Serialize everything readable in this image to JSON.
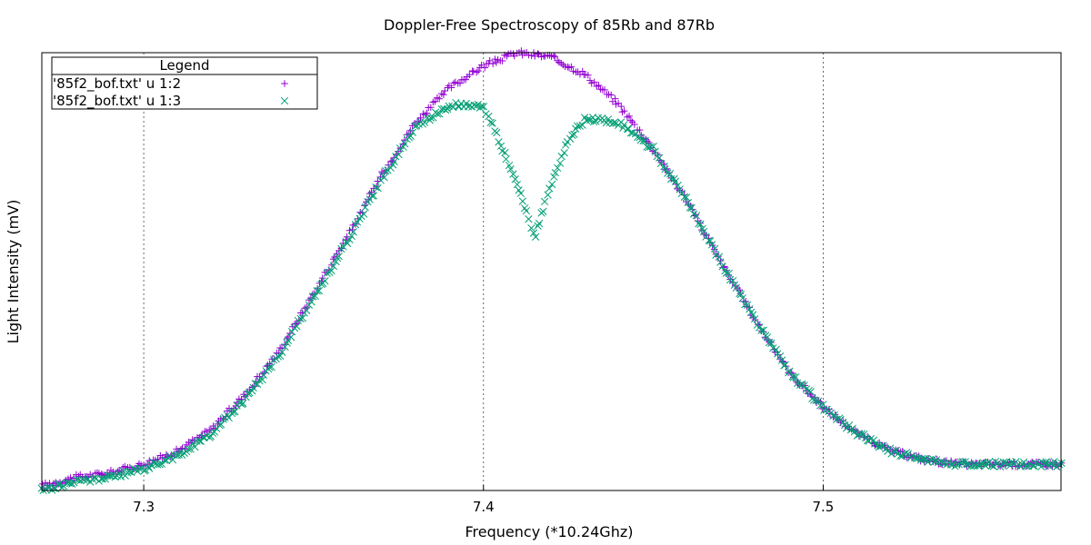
{
  "chart_data": {
    "type": "scatter",
    "title": "Doppler-Free Spectroscopy of 85Rb and 87Rb",
    "xlabel": "Frequency (*10.24Ghz)",
    "ylabel": "Light Intensity (mV)",
    "xlim": [
      7.27,
      7.57
    ],
    "ylim": [
      0,
      1
    ],
    "xticks": [
      "7.3",
      "7.4",
      "7.5"
    ],
    "xtick_values": [
      7.3,
      7.4,
      7.5
    ],
    "grid": "vertical",
    "legend": {
      "title": "Legend",
      "placement": "top-left"
    },
    "series": [
      {
        "name": "'85f2_bof.txt' u 1:2",
        "marker": "plus",
        "color": "#9400d3",
        "x": [
          7.27,
          7.28,
          7.29,
          7.3,
          7.31,
          7.32,
          7.33,
          7.34,
          7.35,
          7.36,
          7.37,
          7.38,
          7.39,
          7.4,
          7.41,
          7.42,
          7.43,
          7.44,
          7.45,
          7.46,
          7.47,
          7.48,
          7.49,
          7.5,
          7.51,
          7.52,
          7.53,
          7.54,
          7.55,
          7.56,
          7.57
        ],
        "y": [
          0.01,
          0.03,
          0.04,
          0.06,
          0.09,
          0.14,
          0.22,
          0.32,
          0.45,
          0.58,
          0.72,
          0.84,
          0.92,
          0.97,
          1.0,
          0.99,
          0.95,
          0.88,
          0.78,
          0.66,
          0.52,
          0.39,
          0.27,
          0.19,
          0.13,
          0.09,
          0.07,
          0.06,
          0.06,
          0.06,
          0.06
        ]
      },
      {
        "name": "'85f2_bof.txt' u 1:3",
        "marker": "cross",
        "color": "#009e73",
        "x": [
          7.27,
          7.28,
          7.29,
          7.3,
          7.31,
          7.32,
          7.33,
          7.34,
          7.35,
          7.36,
          7.37,
          7.38,
          7.39,
          7.4,
          7.405,
          7.41,
          7.415,
          7.42,
          7.425,
          7.43,
          7.44,
          7.45,
          7.46,
          7.47,
          7.48,
          7.49,
          7.5,
          7.51,
          7.52,
          7.53,
          7.54,
          7.55,
          7.56,
          7.57
        ],
        "y": [
          0.0,
          0.02,
          0.03,
          0.05,
          0.08,
          0.13,
          0.21,
          0.31,
          0.44,
          0.57,
          0.71,
          0.83,
          0.88,
          0.88,
          0.79,
          0.7,
          0.58,
          0.7,
          0.8,
          0.85,
          0.84,
          0.78,
          0.66,
          0.52,
          0.39,
          0.27,
          0.19,
          0.13,
          0.09,
          0.07,
          0.06,
          0.06,
          0.06,
          0.06
        ]
      }
    ]
  }
}
